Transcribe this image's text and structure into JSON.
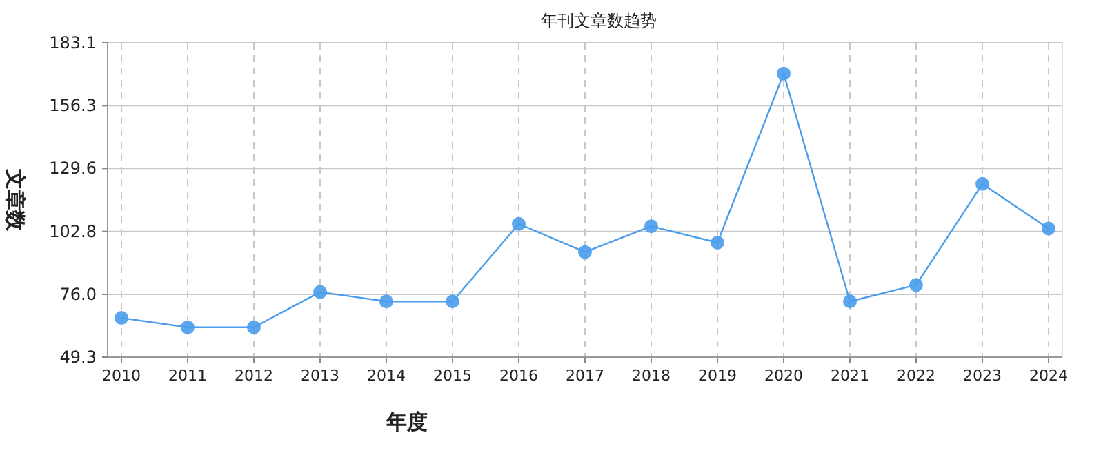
{
  "chart_data": {
    "type": "line",
    "title": "年刊文章数趋势",
    "xlabel": "年度",
    "ylabel": "文章数",
    "categories": [
      "2010",
      "2011",
      "2012",
      "2013",
      "2014",
      "2015",
      "2016",
      "2017",
      "2018",
      "2019",
      "2020",
      "2021",
      "2022",
      "2023",
      "2024"
    ],
    "series": [
      {
        "color": "#4a9cec",
        "values": [
          66,
          62,
          62,
          77,
          73,
          73,
          106,
          94,
          105,
          98,
          170,
          73,
          80,
          123,
          104
        ]
      }
    ],
    "ylim": [
      49.3,
      183.1
    ],
    "yticks": [
      49.3,
      {
        "value": 76.0,
        "label": "76.0"
      },
      102.8,
      129.6,
      156.3,
      183.1
    ],
    "grid": true,
    "marker": "circle",
    "line_style": "solid"
  }
}
